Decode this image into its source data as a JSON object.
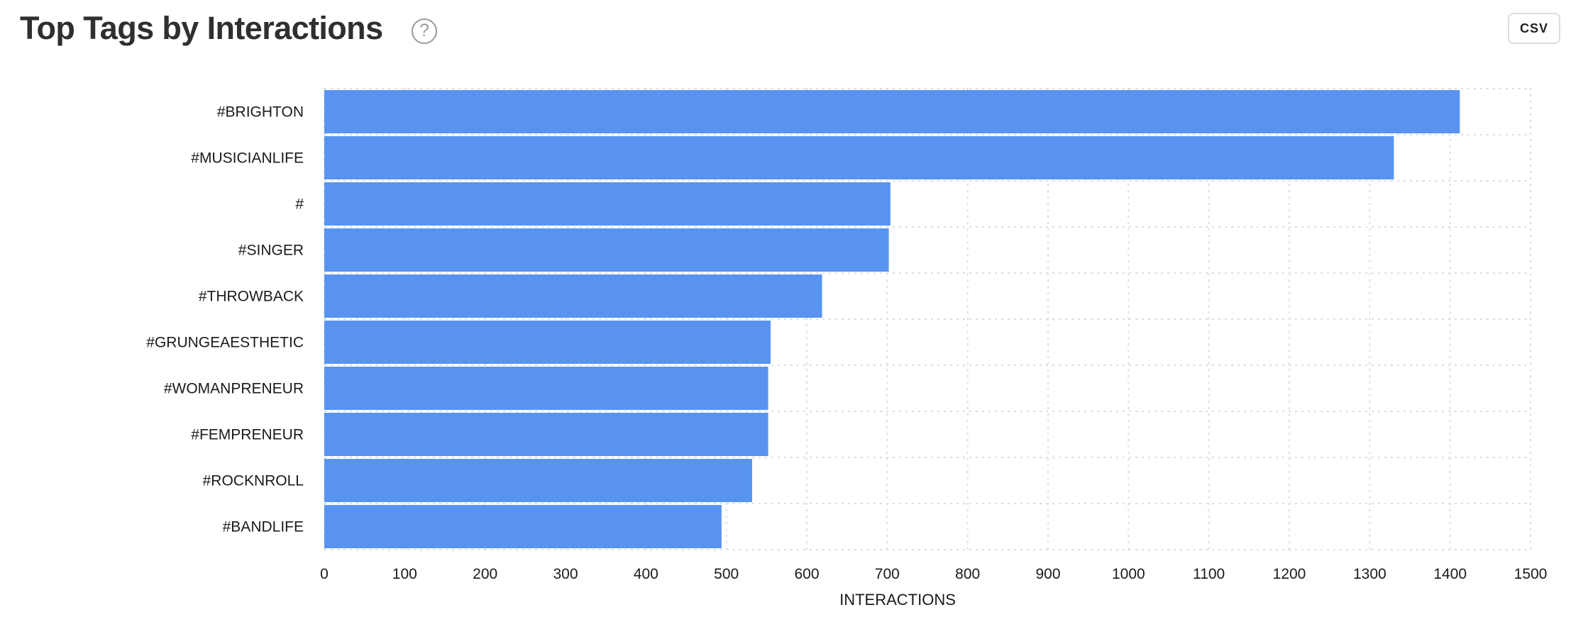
{
  "header": {
    "title": "Top Tags by Interactions",
    "help_icon": "question-circle-icon",
    "help_glyph": "?",
    "csv_label": "CSV"
  },
  "chart_data": {
    "type": "bar",
    "orientation": "horizontal",
    "categories": [
      "#BRIGHTON",
      "#MUSICIANLIFE",
      "#",
      "#SINGER",
      "#THROWBACK",
      "#GRUNGEAESTHETIC",
      "#WOMANPRENEUR",
      "#FEMPRENEUR",
      "#ROCKNROLL",
      "#BANDLIFE"
    ],
    "values": [
      1412,
      1330,
      704,
      702,
      619,
      555,
      552,
      552,
      532,
      494
    ],
    "title": "Top Tags by Interactions",
    "xlabel": "INTERACTIONS",
    "ylabel": "",
    "xlim": [
      0,
      1500
    ],
    "xticks": [
      0,
      100,
      200,
      300,
      400,
      500,
      600,
      700,
      800,
      900,
      1000,
      1100,
      1200,
      1300,
      1400,
      1500
    ],
    "grid": true,
    "legend": "none",
    "bar_color": "#5893f0",
    "grid_color": "#dddddd"
  }
}
